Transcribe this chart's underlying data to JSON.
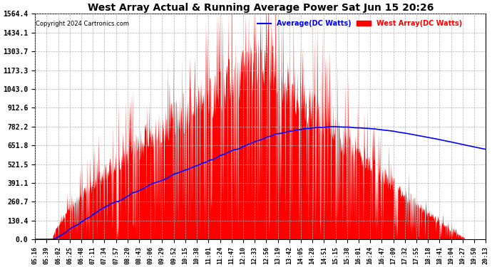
{
  "title": "West Array Actual & Running Average Power Sat Jun 15 20:26",
  "copyright": "Copyright 2024 Cartronics.com",
  "legend_avg": "Average(DC Watts)",
  "legend_west": "West Array(DC Watts)",
  "yticks": [
    0.0,
    130.4,
    260.7,
    391.1,
    521.5,
    651.8,
    782.2,
    912.6,
    1043.0,
    1173.3,
    1303.7,
    1434.1,
    1564.4
  ],
  "ymax": 1564.4,
  "xtick_labels": [
    "05:16",
    "05:39",
    "06:02",
    "06:25",
    "06:48",
    "07:11",
    "07:34",
    "07:57",
    "08:20",
    "08:43",
    "09:06",
    "09:29",
    "09:52",
    "10:15",
    "10:38",
    "11:01",
    "11:24",
    "11:47",
    "12:10",
    "12:33",
    "12:56",
    "13:19",
    "13:42",
    "14:05",
    "14:28",
    "14:51",
    "15:15",
    "15:38",
    "16:01",
    "16:24",
    "16:47",
    "17:09",
    "17:32",
    "17:55",
    "18:18",
    "18:41",
    "19:04",
    "19:27",
    "19:50",
    "20:13"
  ],
  "bg_color": "#ffffff",
  "fill_color": "#ff0000",
  "line_color": "#0000ff",
  "grid_color": "#b0b0b0",
  "title_color": "#000000",
  "copyright_color": "#000000",
  "avg_label_color": "#0000ff",
  "west_label_color": "#ff0000",
  "figsize": [
    6.9,
    3.75
  ],
  "dpi": 100
}
